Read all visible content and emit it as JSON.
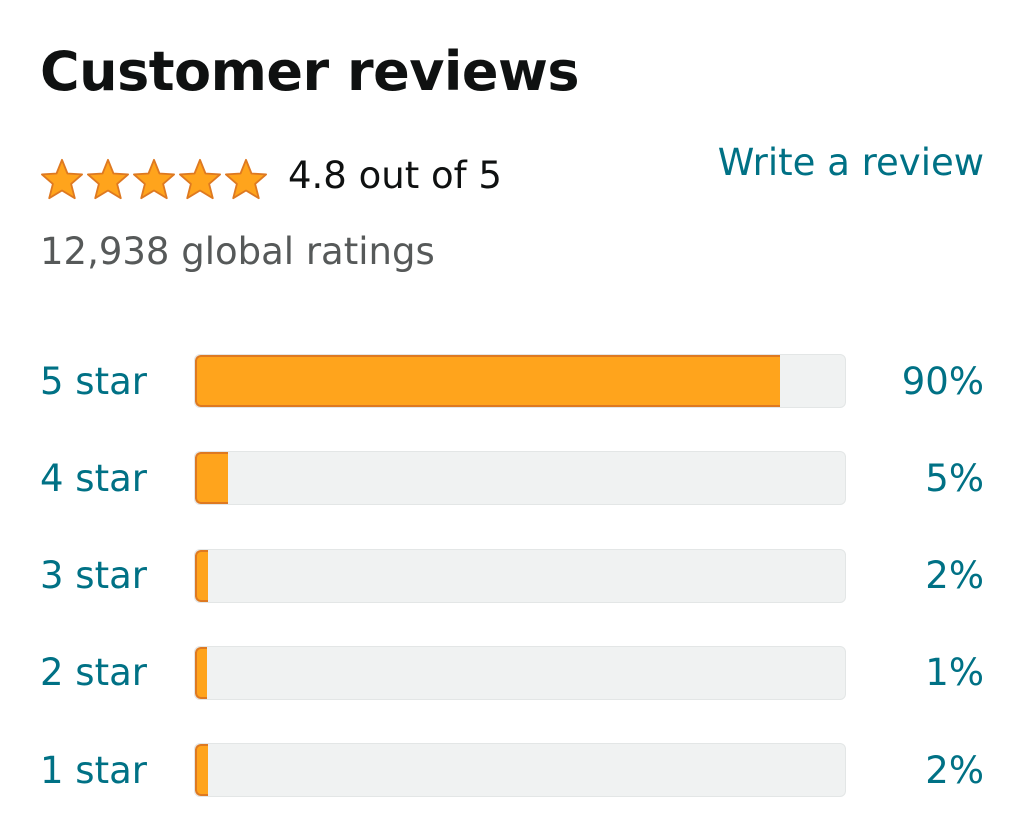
{
  "header": {
    "title": "Customer reviews"
  },
  "summary": {
    "rating": 4.8,
    "stars_shown": 5,
    "rating_text": "4.8 out of 5",
    "global_ratings": "12,938 global ratings",
    "write_review_label": "Write a review"
  },
  "colors": {
    "star": "#ffa41c",
    "star_border": "#de7921",
    "link": "#007185",
    "bar_bg": "#f0f2f2"
  },
  "histogram": [
    {
      "label": "5 star",
      "percent": 90,
      "percent_label": "90%"
    },
    {
      "label": "4 star",
      "percent": 5,
      "percent_label": "5%"
    },
    {
      "label": "3 star",
      "percent": 2,
      "percent_label": "2%"
    },
    {
      "label": "2 star",
      "percent": 1,
      "percent_label": "1%"
    },
    {
      "label": "1 star",
      "percent": 2,
      "percent_label": "2%"
    }
  ]
}
